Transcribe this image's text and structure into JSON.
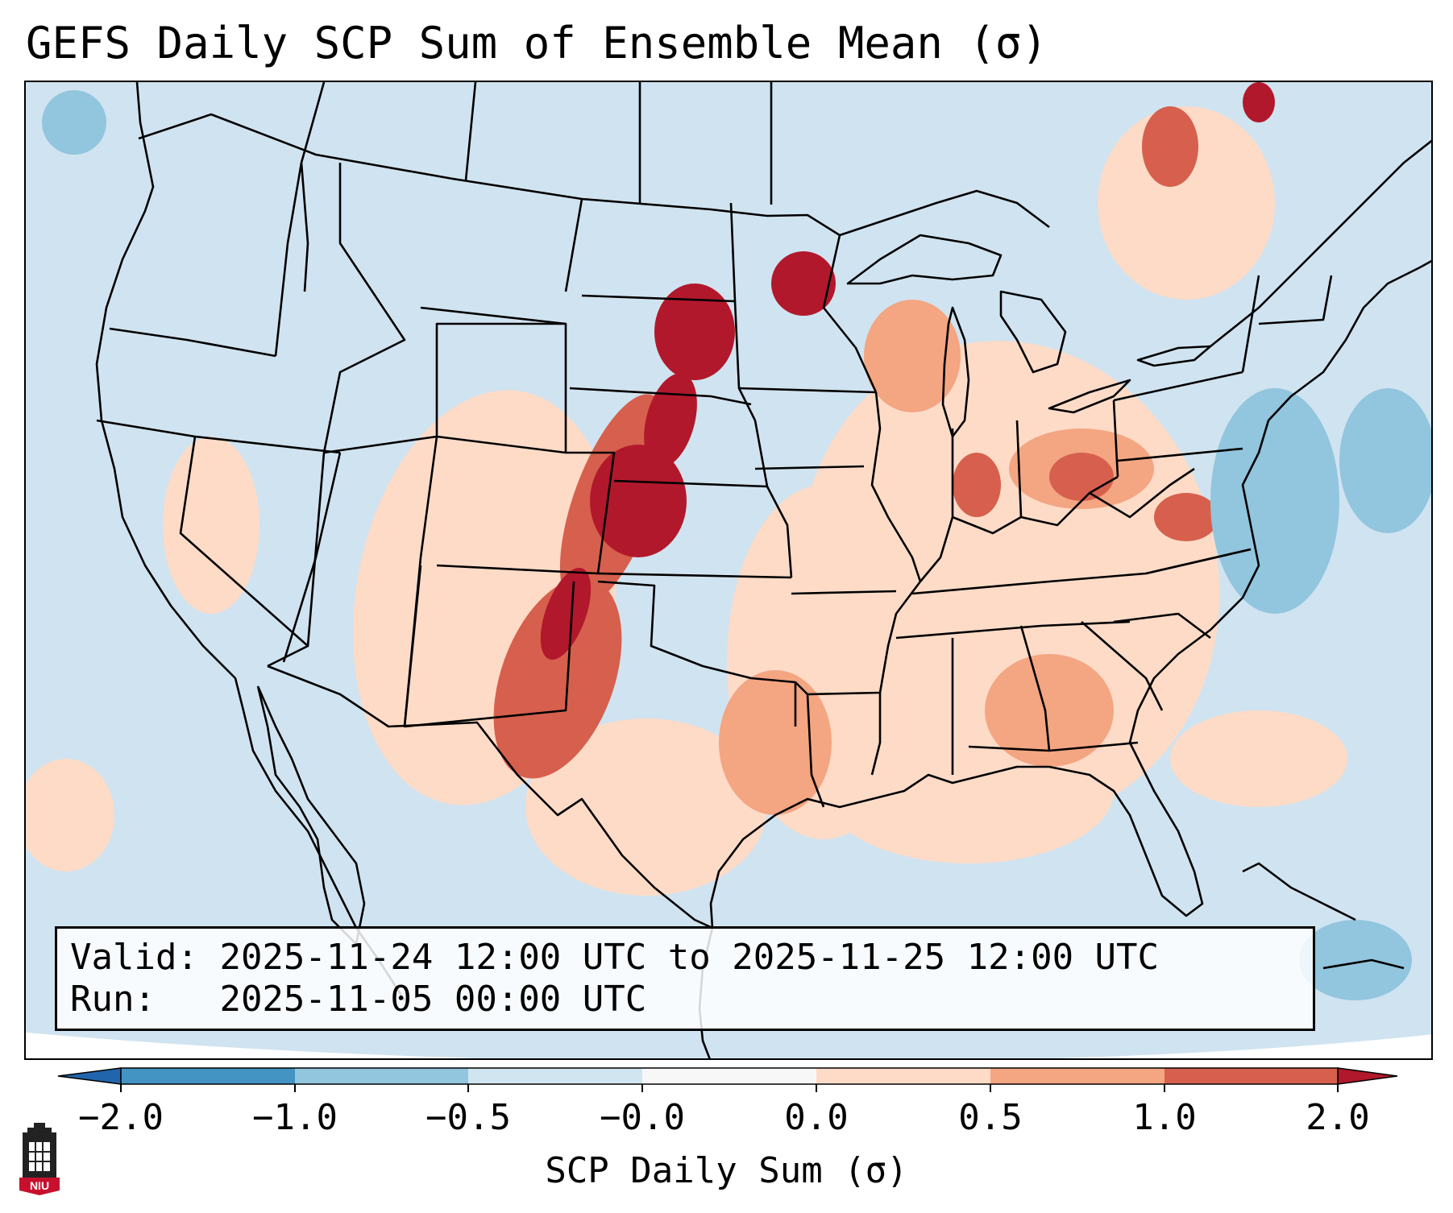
{
  "title": "GEFS Daily SCP Sum of Ensemble Mean (σ)",
  "info": {
    "valid_label": "Valid:",
    "valid_value": "2025-11-24 12:00 UTC to 2025-11-25 12:00 UTC",
    "run_label": "Run:",
    "run_value": "2025-11-05 00:00 UTC"
  },
  "colorbar": {
    "label": "SCP Daily Sum (σ)",
    "ticks": [
      "−2.0",
      "−1.0",
      "−0.5",
      "−0.0",
      "0.0",
      "0.5",
      "1.0",
      "2.0"
    ],
    "bins": [
      {
        "from": "<-2.0",
        "color": "#2166ac"
      },
      {
        "from": "-2.0",
        "to": "-1.0",
        "color": "#4393c3"
      },
      {
        "from": "-1.0",
        "to": "-0.5",
        "color": "#92c5de"
      },
      {
        "from": "-0.5",
        "to": "-0.0",
        "color": "#d1e5f0"
      },
      {
        "from": "-0.0",
        "to": "0.0",
        "color": "#f7f7f7"
      },
      {
        "from": "0.0",
        "to": "0.5",
        "color": "#fddbc7"
      },
      {
        "from": "0.5",
        "to": "1.0",
        "color": "#f4a582"
      },
      {
        "from": "1.0",
        "to": "2.0",
        "color": "#d6604d"
      },
      {
        "from": ">2.0",
        "color": "#b2182b"
      }
    ]
  },
  "map": {
    "region": "Contiguous United States",
    "projection": "Lambert conformal",
    "background_color": "#d1e5f0",
    "border_color": "#000000"
  },
  "logo": {
    "text": "NIU"
  }
}
